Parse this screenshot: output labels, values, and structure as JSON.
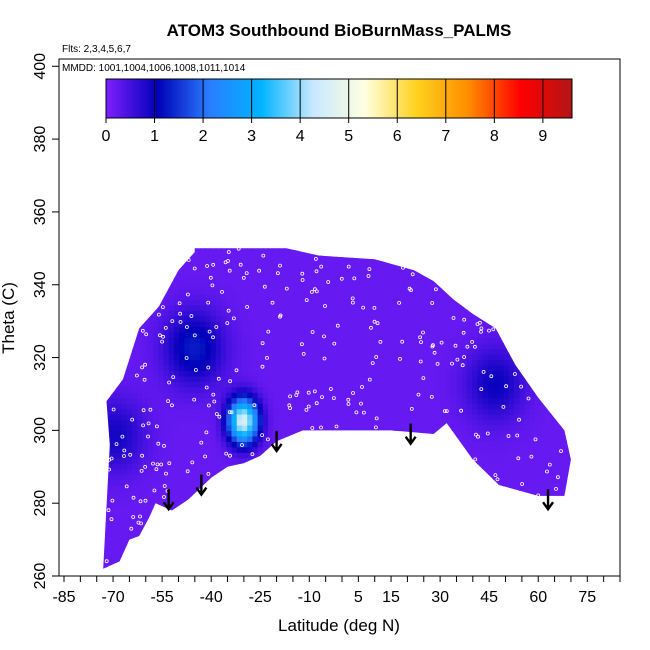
{
  "chart_data": {
    "type": "heatmap",
    "title": "ATOM3 Southbound BioBurnMass_PALMS",
    "subtitle_flights": "Flts: 2,3,4,5,6,7",
    "subtitle_dates": "MMDD: 1001,1004,1006,1008,1011,1014",
    "xlabel": "Latitude (deg N)",
    "ylabel": "Theta (C)",
    "xlim": [
      -85,
      85
    ],
    "ylim": [
      260,
      402
    ],
    "xticks": [
      -85,
      -70,
      -55,
      -40,
      -25,
      -10,
      5,
      15,
      30,
      45,
      60,
      75
    ],
    "xtick_labels": [
      "-85",
      "-70",
      "-55",
      "-40",
      "-25",
      "-10",
      "5",
      "15",
      "30",
      "45",
      "60",
      "75"
    ],
    "yticks": [
      260,
      280,
      300,
      320,
      340,
      360,
      380,
      400
    ],
    "ytick_labels": [
      "260",
      "280",
      "300",
      "320",
      "340",
      "360",
      "380",
      "400"
    ],
    "colorbar": {
      "min": 0,
      "max": 9.6,
      "ticks": [
        0,
        1,
        2,
        3,
        4,
        5,
        6,
        7,
        8,
        9
      ],
      "tick_labels": [
        "0",
        "1",
        "2",
        "3",
        "4",
        "5",
        "6",
        "7",
        "8",
        "9"
      ],
      "colors": [
        "#7f1fff",
        "#0000b8",
        "#2a7dff",
        "#00b4ff",
        "#c8e8ff",
        "#ffffe0",
        "#ffd21e",
        "#ff8c00",
        "#ff0000",
        "#b21515"
      ]
    },
    "background_value": 0.2,
    "blobs": [
      {
        "lat": -31,
        "theta": 302,
        "peak": 4.6,
        "label": "bright plume"
      },
      {
        "lat": -46,
        "theta": 322,
        "peak": 1.3,
        "label": "dark patch"
      },
      {
        "lat": -70,
        "theta": 298,
        "peak": 0.9,
        "label": "dark patch"
      },
      {
        "lat": 46,
        "theta": 312,
        "peak": 1.0,
        "label": "dark patch"
      }
    ],
    "domain_outline": [
      [
        -73,
        262
      ],
      [
        -71,
        296
      ],
      [
        -72,
        308
      ],
      [
        -67,
        314
      ],
      [
        -62,
        328
      ],
      [
        -56,
        334
      ],
      [
        -50,
        344
      ],
      [
        -45,
        349
      ],
      [
        -45,
        350
      ],
      [
        -35,
        350
      ],
      [
        -17,
        350
      ],
      [
        -7,
        348
      ],
      [
        10,
        347
      ],
      [
        22,
        344
      ],
      [
        28,
        341
      ],
      [
        34,
        336
      ],
      [
        40,
        332
      ],
      [
        47,
        328
      ],
      [
        53,
        318
      ],
      [
        60,
        309
      ],
      [
        68,
        300
      ],
      [
        70,
        292
      ],
      [
        68,
        282
      ],
      [
        60,
        282
      ],
      [
        48,
        285
      ],
      [
        40,
        292
      ],
      [
        32,
        302
      ],
      [
        28,
        299
      ],
      [
        15,
        300
      ],
      [
        -2,
        300
      ],
      [
        -12,
        300
      ],
      [
        -20,
        297
      ],
      [
        -25,
        293
      ],
      [
        -30,
        291
      ],
      [
        -35,
        290
      ],
      [
        -40,
        287
      ],
      [
        -47,
        281
      ],
      [
        -52,
        278
      ],
      [
        -57,
        280
      ],
      [
        -59,
        276
      ],
      [
        -62,
        271
      ],
      [
        -65,
        270
      ],
      [
        -68,
        264
      ],
      [
        -73,
        262
      ]
    ],
    "arrows": [
      {
        "lat": -53,
        "theta": 280
      },
      {
        "lat": -43,
        "theta": 284
      },
      {
        "lat": -20,
        "theta": 296
      },
      {
        "lat": 21,
        "theta": 298
      },
      {
        "lat": 63,
        "theta": 280
      }
    ]
  }
}
